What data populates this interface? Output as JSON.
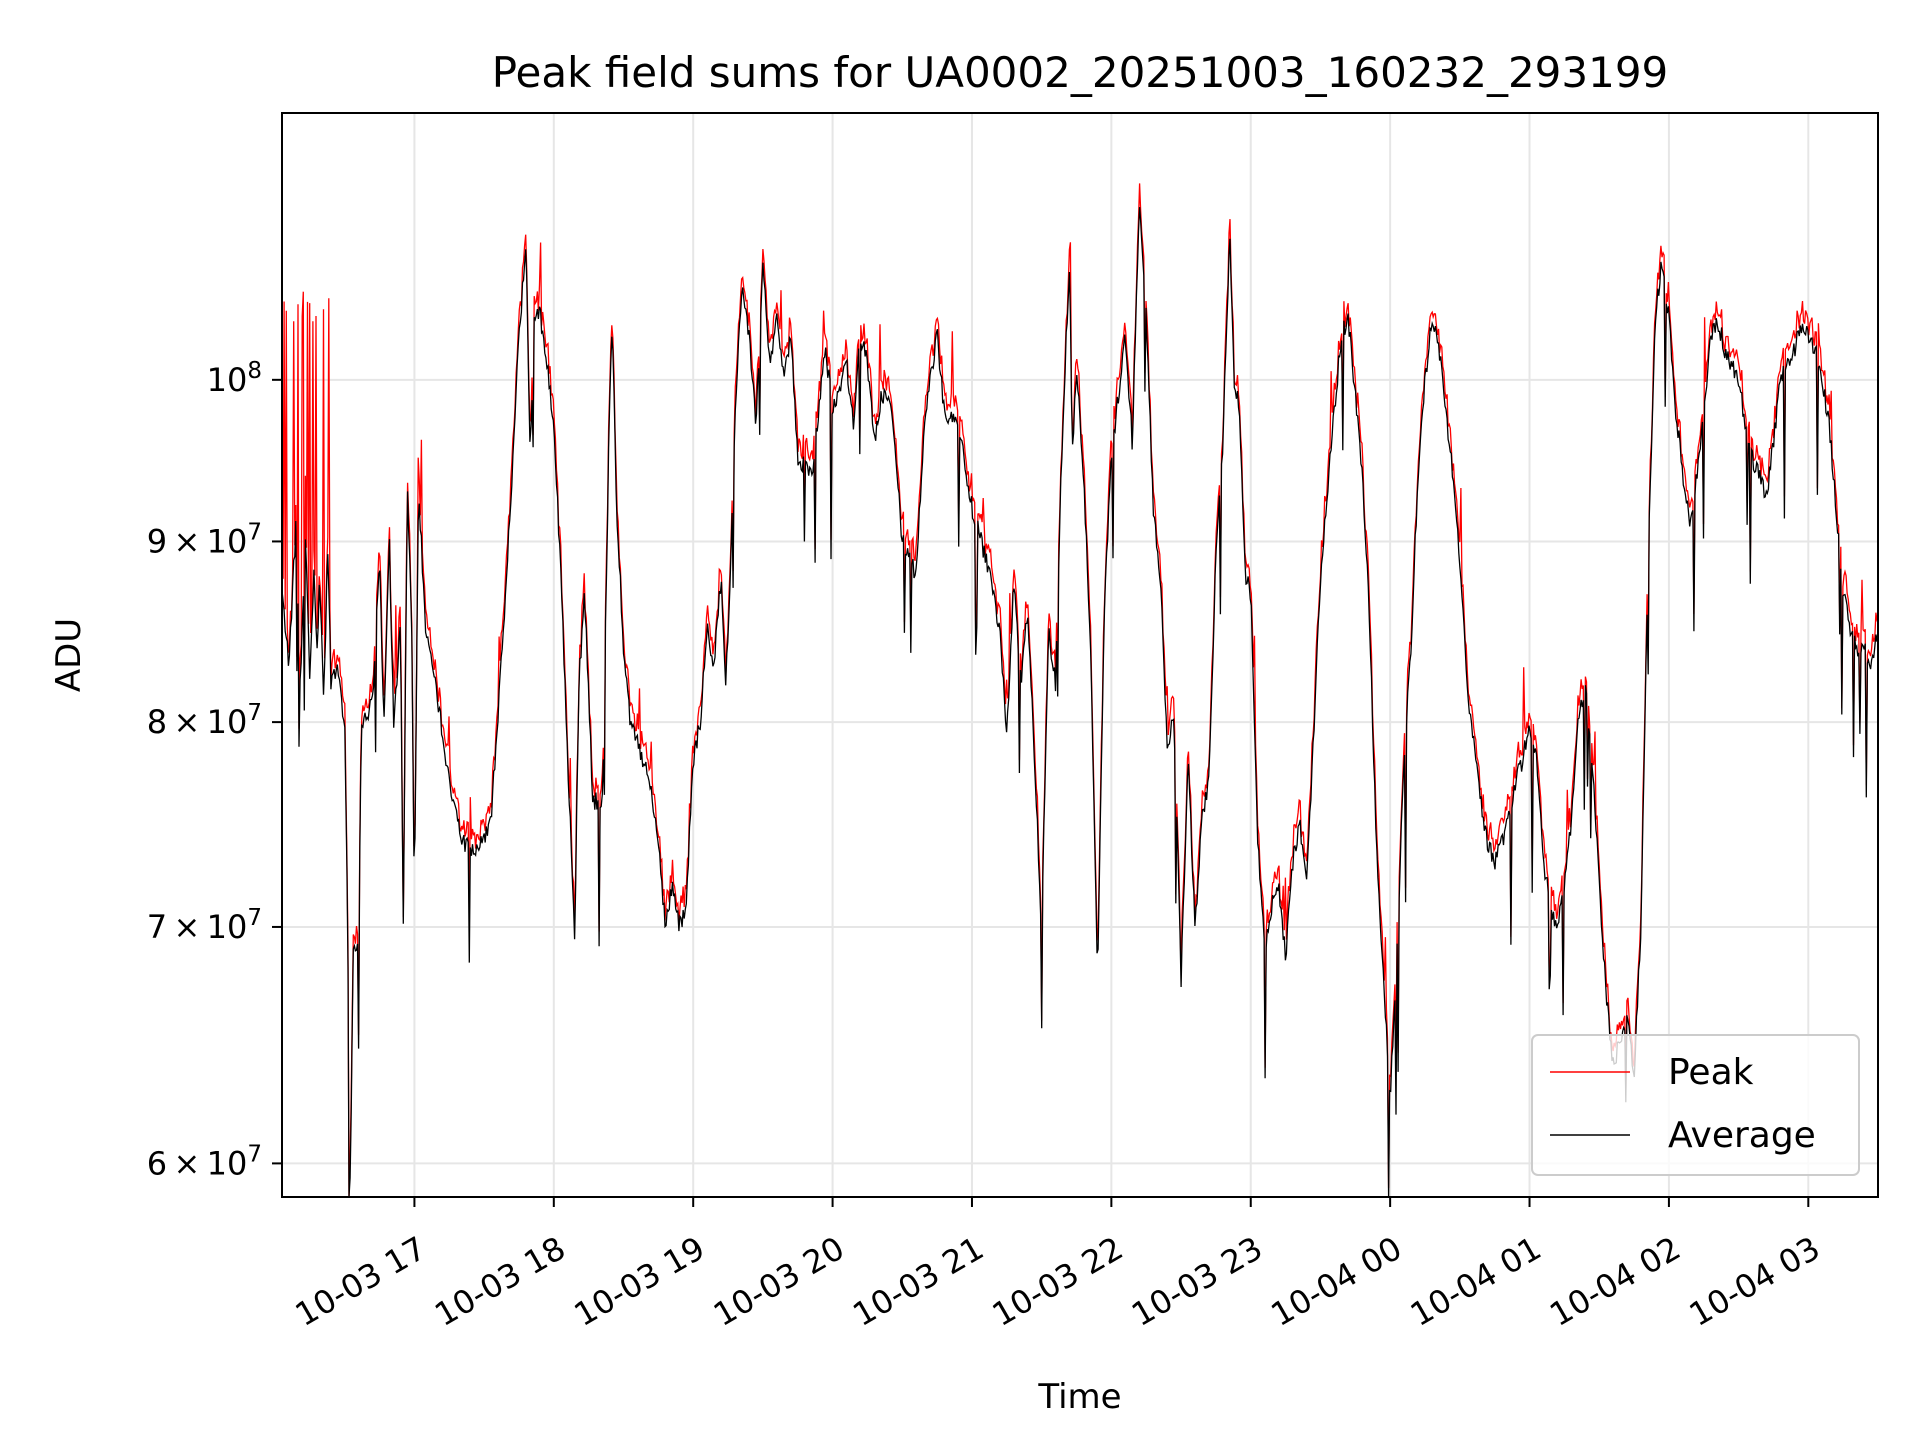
{
  "chart_data": {
    "type": "line",
    "title": "Peak field sums for UA0002_20251003_160232_293199",
    "xlabel": "Time",
    "ylabel": "ADU",
    "yscale": "log",
    "xlim": [
      -0.95,
      10.5
    ],
    "ylim": [
      58700000.0,
      119000000.0
    ],
    "x_ticks": [
      0,
      1,
      2,
      3,
      4,
      5,
      6,
      7,
      8,
      9,
      10
    ],
    "x_tick_labels": [
      "10-03 17",
      "10-03 18",
      "10-03 19",
      "10-03 20",
      "10-03 21",
      "10-03 22",
      "10-03 23",
      "10-04 00",
      "10-04 01",
      "10-04 02",
      "10-04 03"
    ],
    "y_ticks": [
      {
        "value": 60000000,
        "coef": "6",
        "base": "10",
        "exp": "7"
      },
      {
        "value": 70000000,
        "coef": "7",
        "base": "10",
        "exp": "7"
      },
      {
        "value": 80000000,
        "coef": "8",
        "base": "10",
        "exp": "7"
      },
      {
        "value": 90000000,
        "coef": "9",
        "base": "10",
        "exp": "7"
      },
      {
        "value": 100000000,
        "coef": "",
        "base": "10",
        "exp": "8"
      }
    ],
    "grid": true,
    "legend_position": "lower-right",
    "x_unit": "hours since 2025-10-03 17:00",
    "average_points": [
      [
        -0.95,
        87
      ],
      [
        -0.9,
        83
      ],
      [
        -0.85,
        91
      ],
      [
        -0.82,
        82
      ],
      [
        -0.78,
        90
      ],
      [
        -0.75,
        82
      ],
      [
        -0.72,
        89
      ],
      [
        -0.7,
        83
      ],
      [
        -0.68,
        88
      ],
      [
        -0.65,
        81
      ],
      [
        -0.62,
        90
      ],
      [
        -0.6,
        82
      ],
      [
        -0.55,
        83
      ],
      [
        -0.52,
        81
      ],
      [
        -0.5,
        80
      ],
      [
        -0.48,
        70.5
      ],
      [
        -0.46,
        58.5
      ],
      [
        -0.44,
        69
      ],
      [
        -0.4,
        69
      ],
      [
        -0.38,
        80
      ],
      [
        -0.3,
        81
      ],
      [
        -0.25,
        89
      ],
      [
        -0.22,
        80
      ],
      [
        -0.18,
        90
      ],
      [
        -0.15,
        80
      ],
      [
        -0.1,
        85
      ],
      [
        -0.08,
        70
      ],
      [
        -0.05,
        93
      ],
      [
        -0.02,
        85
      ],
      [
        0.0,
        71
      ],
      [
        0.03,
        93
      ],
      [
        0.08,
        85
      ],
      [
        0.15,
        82
      ],
      [
        0.25,
        77
      ],
      [
        0.35,
        74
      ],
      [
        0.45,
        73.5
      ],
      [
        0.55,
        75
      ],
      [
        0.65,
        86
      ],
      [
        0.7,
        94
      ],
      [
        0.75,
        103
      ],
      [
        0.8,
        109
      ],
      [
        0.83,
        95
      ],
      [
        0.86,
        104
      ],
      [
        0.9,
        104.5
      ],
      [
        0.95,
        101
      ],
      [
        1.0,
        97
      ],
      [
        1.05,
        88
      ],
      [
        1.1,
        78
      ],
      [
        1.15,
        69.5
      ],
      [
        1.18,
        82
      ],
      [
        1.22,
        87
      ],
      [
        1.28,
        76
      ],
      [
        1.35,
        76
      ],
      [
        1.4,
        98
      ],
      [
        1.42,
        104
      ],
      [
        1.45,
        92
      ],
      [
        1.5,
        84
      ],
      [
        1.55,
        80
      ],
      [
        1.6,
        79
      ],
      [
        1.7,
        76.5
      ],
      [
        1.75,
        74
      ],
      [
        1.8,
        70
      ],
      [
        1.85,
        72
      ],
      [
        1.9,
        70
      ],
      [
        1.95,
        71
      ],
      [
        2.0,
        78
      ],
      [
        2.05,
        80
      ],
      [
        2.1,
        85
      ],
      [
        2.15,
        83
      ],
      [
        2.2,
        88
      ],
      [
        2.23,
        82
      ],
      [
        2.26,
        86
      ],
      [
        2.3,
        98
      ],
      [
        2.35,
        106
      ],
      [
        2.4,
        103
      ],
      [
        2.45,
        97
      ],
      [
        2.5,
        108
      ],
      [
        2.55,
        101
      ],
      [
        2.6,
        104
      ],
      [
        2.65,
        100
      ],
      [
        2.7,
        103
      ],
      [
        2.75,
        95
      ],
      [
        2.85,
        94
      ],
      [
        2.95,
        102
      ],
      [
        3.0,
        98
      ],
      [
        3.1,
        101
      ],
      [
        3.15,
        97
      ],
      [
        3.2,
        103
      ],
      [
        3.25,
        101
      ],
      [
        3.3,
        96
      ],
      [
        3.35,
        99
      ],
      [
        3.42,
        98.5
      ],
      [
        3.5,
        90
      ],
      [
        3.6,
        88
      ],
      [
        3.65,
        96
      ],
      [
        3.7,
        100
      ],
      [
        3.75,
        103
      ],
      [
        3.8,
        98
      ],
      [
        3.9,
        97
      ],
      [
        4.0,
        92
      ],
      [
        4.1,
        89
      ],
      [
        4.15,
        87
      ],
      [
        4.2,
        85
      ],
      [
        4.25,
        79
      ],
      [
        4.3,
        88
      ],
      [
        4.35,
        82
      ],
      [
        4.4,
        86
      ],
      [
        4.45,
        78
      ],
      [
        4.5,
        69.5
      ],
      [
        4.55,
        85
      ],
      [
        4.6,
        82
      ],
      [
        4.65,
        97
      ],
      [
        4.7,
        108
      ],
      [
        4.72,
        95
      ],
      [
        4.75,
        101
      ],
      [
        4.8,
        94
      ],
      [
        4.85,
        84
      ],
      [
        4.9,
        67.5
      ],
      [
        4.95,
        86
      ],
      [
        5.0,
        95
      ],
      [
        5.05,
        99
      ],
      [
        5.1,
        103
      ],
      [
        5.15,
        96
      ],
      [
        5.2,
        112
      ],
      [
        5.25,
        104
      ],
      [
        5.3,
        92
      ],
      [
        5.35,
        88
      ],
      [
        5.4,
        79
      ],
      [
        5.45,
        80
      ],
      [
        5.5,
        67.5
      ],
      [
        5.55,
        78
      ],
      [
        5.6,
        70
      ],
      [
        5.65,
        75
      ],
      [
        5.7,
        77
      ],
      [
        5.75,
        89
      ],
      [
        5.8,
        96
      ],
      [
        5.85,
        110
      ],
      [
        5.88,
        100
      ],
      [
        5.92,
        98
      ],
      [
        5.96,
        88
      ],
      [
        6.0,
        87
      ],
      [
        6.05,
        74
      ],
      [
        6.1,
        69
      ],
      [
        6.15,
        71
      ],
      [
        6.2,
        72
      ],
      [
        6.25,
        68.5
      ],
      [
        6.3,
        73
      ],
      [
        6.35,
        75
      ],
      [
        6.4,
        72
      ],
      [
        6.45,
        79
      ],
      [
        6.5,
        88
      ],
      [
        6.55,
        93
      ],
      [
        6.6,
        98
      ],
      [
        6.65,
        103
      ],
      [
        6.7,
        104
      ],
      [
        6.75,
        99
      ],
      [
        6.8,
        94
      ],
      [
        6.85,
        86
      ],
      [
        6.9,
        74
      ],
      [
        6.95,
        68
      ],
      [
        7.0,
        62.5
      ],
      [
        7.05,
        69
      ],
      [
        7.1,
        78
      ],
      [
        7.15,
        84
      ],
      [
        7.2,
        94
      ],
      [
        7.25,
        100
      ],
      [
        7.3,
        104
      ],
      [
        7.35,
        102
      ],
      [
        7.4,
        98
      ],
      [
        7.45,
        94
      ],
      [
        7.5,
        89
      ],
      [
        7.55,
        82
      ],
      [
        7.6,
        79
      ],
      [
        7.65,
        76
      ],
      [
        7.7,
        74
      ],
      [
        7.75,
        73
      ],
      [
        7.8,
        74
      ],
      [
        7.85,
        75
      ],
      [
        7.9,
        77
      ],
      [
        7.95,
        78
      ],
      [
        8.0,
        80
      ],
      [
        8.05,
        78
      ],
      [
        8.1,
        73
      ],
      [
        8.15,
        71
      ],
      [
        8.2,
        70
      ],
      [
        8.25,
        72
      ],
      [
        8.3,
        75
      ],
      [
        8.35,
        80
      ],
      [
        8.4,
        82
      ],
      [
        8.45,
        78
      ],
      [
        8.5,
        72
      ],
      [
        8.55,
        67
      ],
      [
        8.6,
        64
      ],
      [
        8.65,
        65
      ],
      [
        8.7,
        66
      ],
      [
        8.75,
        63.5
      ],
      [
        8.8,
        70
      ],
      [
        8.85,
        88
      ],
      [
        8.9,
        104
      ],
      [
        8.95,
        108
      ],
      [
        9.0,
        104
      ],
      [
        9.05,
        98
      ],
      [
        9.1,
        94
      ],
      [
        9.15,
        91
      ],
      [
        9.2,
        94
      ],
      [
        9.25,
        98
      ],
      [
        9.3,
        103
      ],
      [
        9.35,
        104
      ],
      [
        9.4,
        102
      ],
      [
        9.45,
        101
      ],
      [
        9.5,
        100
      ],
      [
        9.55,
        97
      ],
      [
        9.6,
        95
      ],
      [
        9.65,
        94
      ],
      [
        9.7,
        92.5
      ],
      [
        9.75,
        96
      ],
      [
        9.8,
        100
      ],
      [
        9.85,
        101
      ],
      [
        9.9,
        102
      ],
      [
        9.95,
        103.5
      ],
      [
        10.0,
        103
      ],
      [
        10.05,
        102
      ],
      [
        10.1,
        100
      ],
      [
        10.15,
        97
      ],
      [
        10.2,
        92
      ],
      [
        10.25,
        87
      ],
      [
        10.3,
        85
      ],
      [
        10.35,
        84
      ],
      [
        10.4,
        84
      ],
      [
        10.45,
        83
      ],
      [
        10.5,
        85
      ]
    ]
  },
  "legend": {
    "peak_label": "Peak",
    "average_label": "Average",
    "peak_color": "#ff0000",
    "average_color": "#000000"
  },
  "colors": {
    "grid": "#e6e6e6",
    "axes": "#000000",
    "background": "#ffffff"
  }
}
